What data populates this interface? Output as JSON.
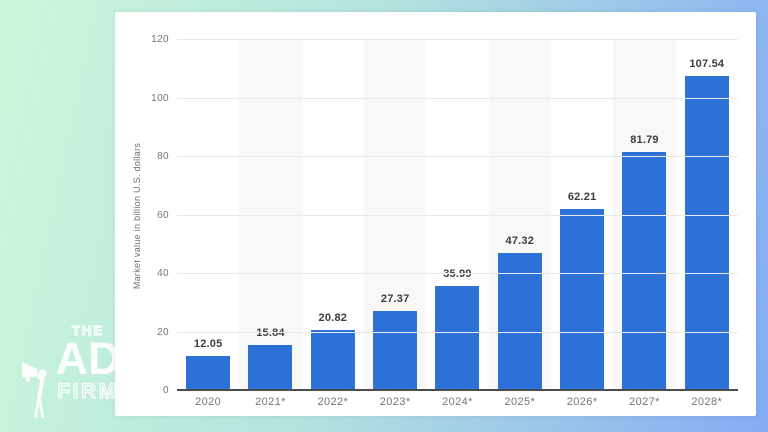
{
  "logo": {
    "word_top": "THE",
    "word_main": "AD",
    "word_bottom": "FIRM"
  },
  "colors": {
    "background_left": "#cbf8da",
    "background_mid": "#b4e2df",
    "background_right": "#84abf4",
    "card": "#ffffff",
    "bar": "#2c71d6",
    "gridline": "#e9e9e9",
    "baseline": "#4c4c4c",
    "band": "#f8f8f8",
    "tick_text": "#757575",
    "value_text": "#3d3d3d",
    "axis_title_text": "#6f6f6f",
    "logo": "#ffffff"
  },
  "chart_data": {
    "type": "bar",
    "title": "",
    "xlabel": "",
    "ylabel": "Market value in billion U.S. dollars",
    "categories": [
      "2020",
      "2021*",
      "2022*",
      "2023*",
      "2024*",
      "2025*",
      "2026*",
      "2027*",
      "2028*"
    ],
    "values": [
      12.05,
      15.84,
      20.82,
      27.37,
      35.99,
      47.32,
      62.21,
      81.79,
      107.54
    ],
    "value_labels": [
      "12.05",
      "15.84",
      "20.82",
      "27.37",
      "35.99",
      "47.32",
      "62.21",
      "81.79",
      "107.54"
    ],
    "ylim": [
      0,
      120
    ],
    "yticks": [
      0,
      20,
      40,
      60,
      80,
      100,
      120
    ],
    "grid": true,
    "legend": false,
    "banded_column_indexes": [
      1,
      3,
      5,
      7
    ]
  }
}
